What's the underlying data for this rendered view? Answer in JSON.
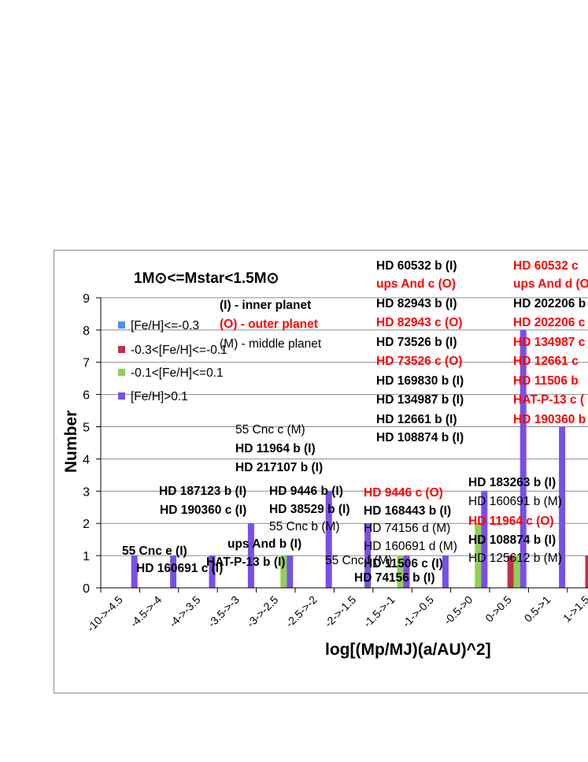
{
  "chart_data": {
    "type": "bar",
    "title": "1M⊙<=Mstar<1.5M⊙",
    "xlabel": "log[(Mp/MJ)(a/AU)^2]",
    "ylabel": "Number",
    "ylim": [
      0,
      9
    ],
    "yticks": [
      "0",
      "1",
      "2",
      "3",
      "4",
      "5",
      "6",
      "7",
      "8",
      "9"
    ],
    "grid": true,
    "legend_position": "left",
    "categories": [
      "-10->-4.5",
      "-4.5->-4",
      "-4->-3.5",
      "-3.5->-3",
      "-3->-2.5",
      "-2.5->-2",
      "-2->-1.5",
      "-1.5->-1",
      "-1->-0.5",
      "-0.5->0",
      "0->0.5",
      "0.5->1",
      "1->1.5"
    ],
    "series": [
      {
        "name": "[Fe/H]<=-0.3",
        "color": "#4f8fe8",
        "values": [
          0,
          0,
          0,
          0,
          0,
          0,
          0,
          0,
          0,
          0,
          0,
          0,
          0
        ]
      },
      {
        "name": "-0.3<[Fe/H]<=-0.1",
        "color": "#c0304a",
        "values": [
          0,
          0,
          0,
          0,
          0,
          0,
          0,
          0,
          0,
          0,
          1,
          0,
          1
        ]
      },
      {
        "name": "-0.1<[Fe/H]<=0.1",
        "color": "#92d050",
        "values": [
          0,
          0,
          0,
          0,
          1,
          0,
          0,
          1,
          0,
          2,
          1,
          0,
          0
        ]
      },
      {
        "name": "[Fe/H]>0.1",
        "color": "#7b4ee8",
        "values": [
          1,
          1,
          1,
          2,
          1,
          3,
          2,
          1,
          1,
          3,
          8,
          5,
          0
        ]
      }
    ],
    "key_legend": [
      {
        "text": "(I) - inner planet",
        "style": "bold"
      },
      {
        "text": "(O) - outer planet",
        "style": "bold-red"
      },
      {
        "text": "(M) - middle planet",
        "style": "normal"
      }
    ],
    "annotations": [
      {
        "text": "55 Cnc e (I)",
        "style": "bold"
      },
      {
        "text": "HD 160691 c (I)",
        "style": "bold"
      },
      {
        "text": "HD 187123 b (I)",
        "style": "bold"
      },
      {
        "text": "HD 190360 c (I)",
        "style": "bold"
      },
      {
        "text": "ups And b (I)",
        "style": "bold"
      },
      {
        "text": "HAT-P-13 b (I)",
        "style": "bold"
      },
      {
        "text": "55 Cnc c (M)",
        "style": "normal"
      },
      {
        "text": "HD 11964 b (I)",
        "style": "bold"
      },
      {
        "text": "HD 217107 b (I)",
        "style": "bold"
      },
      {
        "text": "HD 9446 b (I)",
        "style": "bold"
      },
      {
        "text": "HD 38529 b (I)",
        "style": "bold"
      },
      {
        "text": "55 Cnc b (M)",
        "style": "normal"
      },
      {
        "text": "55 Cnc f (M)",
        "style": "normal"
      },
      {
        "text": "HD 9446 c (O)",
        "style": "bold-red"
      },
      {
        "text": "HD 168443 b (I)",
        "style": "bold"
      },
      {
        "text": "HD 74156 d (M)",
        "style": "normal"
      },
      {
        "text": "HD 160691 d (M)",
        "style": "normal"
      },
      {
        "text": "HD 11506 c (I)",
        "style": "bold"
      },
      {
        "text": "HD 74156 b (I)",
        "style": "bold"
      },
      {
        "text": "HD 60532 b (I)",
        "style": "bold"
      },
      {
        "text": "ups And c (O)",
        "style": "bold-red"
      },
      {
        "text": "HD 82943 b (I)",
        "style": "bold"
      },
      {
        "text": "HD 82943 c (O)",
        "style": "bold-red"
      },
      {
        "text": "HD 73526 b (I)",
        "style": "bold"
      },
      {
        "text": "HD 73526 c (O)",
        "style": "bold-red"
      },
      {
        "text": "HD 169830 b (I)",
        "style": "bold"
      },
      {
        "text": "HD 134987 b (I)",
        "style": "bold"
      },
      {
        "text": "HD 12661 b (I)",
        "style": "bold"
      },
      {
        "text": "HD 108874 b (I)",
        "style": "bold"
      },
      {
        "text": "HD 183263 b (I)",
        "style": "bold"
      },
      {
        "text": "HD 160691 b (M)",
        "style": "normal"
      },
      {
        "text": "HD 11964 c (O)",
        "style": "bold-red"
      },
      {
        "text": "HD 108874 b (I)",
        "style": "bold"
      },
      {
        "text": "HD 125612 b (M)",
        "style": "normal"
      },
      {
        "text": "HD 60532 c",
        "style": "bold-red"
      },
      {
        "text": "ups And d (O",
        "style": "bold-red"
      },
      {
        "text": "HD 202206 b",
        "style": "bold"
      },
      {
        "text": "HD 202206 c",
        "style": "bold-red"
      },
      {
        "text": "HD 134987 c",
        "style": "bold-red"
      },
      {
        "text": "HD 12661 c",
        "style": "bold-red"
      },
      {
        "text": "HD 11506 b",
        "style": "bold-red"
      },
      {
        "text": "HAT-P-13 c (",
        "style": "bold-red"
      },
      {
        "text": "HD 190360 b",
        "style": "bold-red"
      }
    ]
  }
}
